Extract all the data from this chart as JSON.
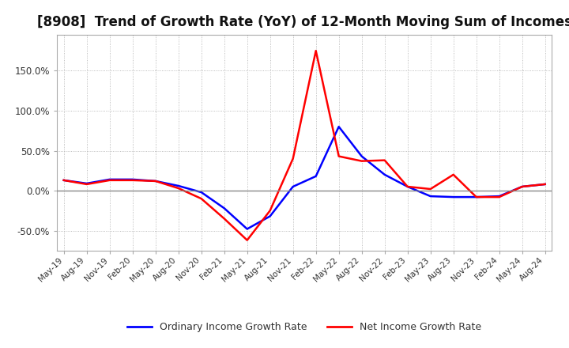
{
  "title": "[8908]  Trend of Growth Rate (YoY) of 12-Month Moving Sum of Incomes",
  "title_fontsize": 12,
  "ylim": [
    -75,
    195
  ],
  "yticks": [
    -50,
    0,
    50,
    100,
    150
  ],
  "ytick_labels": [
    "-50.0%",
    "0.0%",
    "50.0%",
    "100.0%",
    "150.0%"
  ],
  "legend_labels": [
    "Ordinary Income Growth Rate",
    "Net Income Growth Rate"
  ],
  "legend_colors": [
    "blue",
    "red"
  ],
  "x_labels": [
    "May-19",
    "Aug-19",
    "Nov-19",
    "Feb-20",
    "May-20",
    "Aug-20",
    "Nov-20",
    "Feb-21",
    "May-21",
    "Aug-21",
    "Nov-21",
    "Feb-22",
    "May-22",
    "Aug-22",
    "Nov-22",
    "Feb-23",
    "May-23",
    "Aug-23",
    "Nov-23",
    "Feb-24",
    "May-24",
    "Aug-24"
  ],
  "ordinary_income": [
    13,
    9,
    14,
    14,
    12,
    6,
    -2,
    -22,
    -48,
    -32,
    5,
    18,
    80,
    43,
    20,
    5,
    -7,
    -8,
    -8,
    -7,
    5,
    8
  ],
  "net_income": [
    13,
    8,
    13,
    13,
    12,
    3,
    -10,
    -35,
    -62,
    -25,
    40,
    175,
    43,
    37,
    38,
    5,
    2,
    20,
    -8,
    -8,
    5,
    8
  ],
  "background_color": "#ffffff",
  "grid_color": "#aaaaaa",
  "line_color_ordinary": "#0000ff",
  "line_color_net": "#ff0000",
  "zero_line_color": "#888888",
  "border_color": "#aaaaaa"
}
